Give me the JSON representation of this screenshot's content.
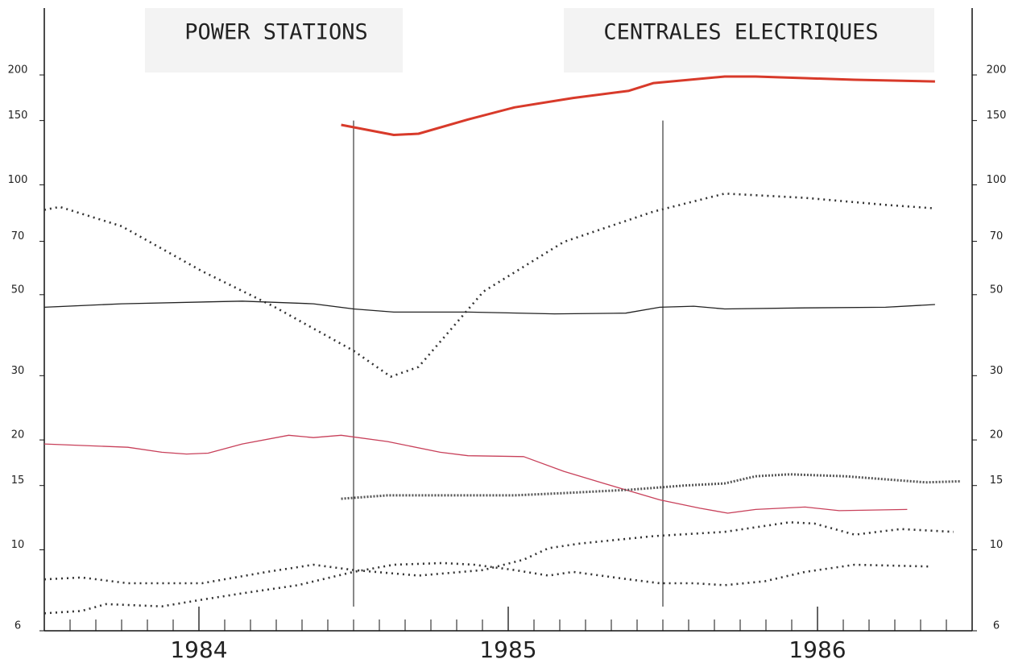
{
  "chart_data": {
    "type": "line",
    "title": "POWER STATIONS",
    "subtitle": "CENTRALES ELECTRIQUES",
    "log_y": true,
    "xlim": [
      1983.5,
      1986.5
    ],
    "xticks": [
      {
        "value": 1984,
        "label": "1984"
      },
      {
        "value": 1985,
        "label": "1985"
      },
      {
        "value": 1986,
        "label": "1986"
      }
    ],
    "ylim": [
      6,
      305
    ],
    "yticks": [
      6,
      10,
      15,
      20,
      30,
      50,
      70,
      100,
      150,
      200
    ],
    "vlines": [
      1984.5,
      1985.5
    ],
    "series": [
      {
        "color": "#d83a2a",
        "style": "thick",
        "x": [
          1984.46,
          1984.63,
          1984.71,
          1984.87,
          1985.02,
          1985.21,
          1985.39,
          1985.47,
          1985.7,
          1985.8,
          1985.96,
          1986.12,
          1986.38
        ],
        "values": [
          146,
          137,
          138,
          151,
          163,
          173,
          181,
          190,
          198,
          198,
          196,
          194,
          192
        ]
      },
      {
        "color": "#333333",
        "style": "plus",
        "x": [
          1983.5,
          1983.55,
          1983.75,
          1984.01,
          1984.24,
          1984.5,
          1984.62,
          1984.71,
          1984.92,
          1985.18,
          1985.47,
          1985.7,
          1985.96,
          1986.22,
          1986.37
        ],
        "values": [
          85.4,
          87,
          77,
          58,
          46.5,
          35.1,
          29.8,
          31.7,
          51,
          69.8,
          84.5,
          94.6,
          92.1,
          88.1,
          86.3
        ]
      },
      {
        "color": "#222222",
        "style": "solid",
        "x": [
          1983.5,
          1983.75,
          1984.14,
          1984.37,
          1984.5,
          1984.63,
          1984.87,
          1985.15,
          1985.38,
          1985.49,
          1985.6,
          1985.7,
          1985.96,
          1986.22,
          1986.38
        ],
        "values": [
          46.2,
          47.2,
          48,
          47.2,
          45.7,
          44.8,
          44.8,
          44.3,
          44.5,
          46.2,
          46.5,
          45.7,
          46,
          46.2,
          47
        ]
      },
      {
        "color": "#c8405a",
        "style": "solid",
        "x": [
          1983.5,
          1983.77,
          1983.88,
          1983.96,
          1984.03,
          1984.14,
          1984.29,
          1984.37,
          1984.46,
          1984.61,
          1984.78,
          1984.87,
          1985.05,
          1985.18,
          1985.31,
          1985.49,
          1985.62,
          1985.71,
          1985.8,
          1985.96,
          1986.07,
          1986.29
        ],
        "values": [
          19.5,
          19.1,
          18.5,
          18.3,
          18.4,
          19.5,
          20.6,
          20.3,
          20.6,
          19.8,
          18.5,
          18.1,
          18,
          16.4,
          15.2,
          13.7,
          13,
          12.6,
          12.9,
          13.1,
          12.8,
          12.9
        ]
      },
      {
        "color": "#555555",
        "style": "dense",
        "x": [
          1984.46,
          1984.61,
          1984.82,
          1985.02,
          1985.18,
          1985.39,
          1985.57,
          1985.7,
          1985.8,
          1985.91,
          1986.09,
          1986.35,
          1986.46
        ],
        "values": [
          13.8,
          14.1,
          14.1,
          14.1,
          14.3,
          14.6,
          15,
          15.2,
          15.9,
          16.1,
          15.9,
          15.3,
          15.4
        ]
      },
      {
        "color": "#333333",
        "style": "plus",
        "x": [
          1983.5,
          1983.62,
          1983.77,
          1984.01,
          1984.22,
          1984.37,
          1984.5,
          1984.71,
          1984.92,
          1985.05,
          1985.13,
          1985.23,
          1985.47,
          1985.7,
          1985.91,
          1985.99,
          1986.12,
          1986.27,
          1986.44
        ],
        "values": [
          8.3,
          8.4,
          8.1,
          8.1,
          8.7,
          9.1,
          8.8,
          8.5,
          8.8,
          9.4,
          10.1,
          10.4,
          10.9,
          11.2,
          11.9,
          11.8,
          11,
          11.4,
          11.2
        ]
      },
      {
        "color": "#333333",
        "style": "plus",
        "x": [
          1983.5,
          1983.62,
          1983.7,
          1983.88,
          1984.01,
          1984.14,
          1984.32,
          1984.5,
          1984.63,
          1984.79,
          1984.89,
          1985.02,
          1985.13,
          1985.21,
          1985.39,
          1985.49,
          1985.6,
          1985.7,
          1985.83,
          1985.96,
          1986.12,
          1986.36
        ],
        "values": [
          6.7,
          6.8,
          7.1,
          7,
          7.3,
          7.6,
          8,
          8.7,
          9.1,
          9.2,
          9.1,
          8.8,
          8.5,
          8.7,
          8.3,
          8.1,
          8.1,
          8,
          8.2,
          8.7,
          9.1,
          9
        ]
      }
    ]
  }
}
